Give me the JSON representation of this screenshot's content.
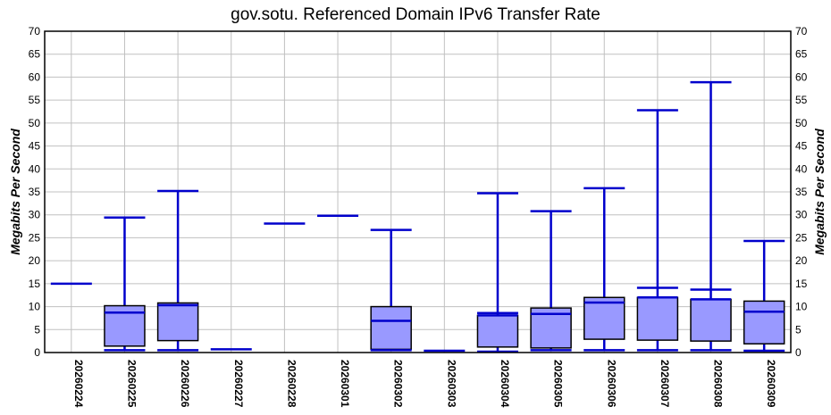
{
  "chart_data": {
    "type": "box",
    "title": "gov.sotu. Referenced Domain IPv6 Transfer Rate",
    "ylabel": "Megabits Per Second",
    "ylabel_right": "Megabits Per Second",
    "xlabel": "",
    "ylim": [
      0,
      70
    ],
    "yticks": [
      0,
      5,
      10,
      15,
      20,
      25,
      30,
      35,
      40,
      45,
      50,
      55,
      60,
      65,
      70
    ],
    "grid": true,
    "colors": {
      "box_fill": "#9999ff",
      "whisker": "#0000cc",
      "box_stroke": "#000000",
      "grid": "#c0c0c0"
    },
    "categories": [
      "20260224",
      "20260225",
      "20260226",
      "20260227",
      "20260228",
      "20260301",
      "20260302",
      "20260303",
      "20260304",
      "20260305",
      "20260306",
      "20260307",
      "20260308",
      "20260309"
    ],
    "series": [
      {
        "date": "20260224",
        "single": 15.0
      },
      {
        "date": "20260225",
        "min": 0.5,
        "q1": 1.4,
        "median": 8.7,
        "q3": 10.2,
        "max": 29.4
      },
      {
        "date": "20260226",
        "min": 0.5,
        "q1": 2.6,
        "median": 10.3,
        "q3": 10.8,
        "max": 35.2
      },
      {
        "date": "20260227",
        "single": 0.7
      },
      {
        "date": "20260228",
        "single": 28.1
      },
      {
        "date": "20260301",
        "single": 29.8
      },
      {
        "date": "20260302",
        "min": 0.5,
        "q1": 0.7,
        "median": 6.9,
        "q3": 10.0,
        "max": 26.7
      },
      {
        "date": "20260303",
        "single": 0.4
      },
      {
        "date": "20260304",
        "min": 0.2,
        "q1": 1.2,
        "median": 8.1,
        "q3": 8.1,
        "max": 34.7,
        "extra": 8.6
      },
      {
        "date": "20260305",
        "min": 0.5,
        "q1": 1.0,
        "median": 8.4,
        "q3": 9.7,
        "max": 30.8
      },
      {
        "date": "20260306",
        "min": 0.5,
        "q1": 2.9,
        "median": 10.9,
        "q3": 12.0,
        "max": 35.8
      },
      {
        "date": "20260307",
        "min": 0.5,
        "q1": 2.7,
        "median": 12.0,
        "q3": 12.0,
        "max": 52.8,
        "extra": 14.1
      },
      {
        "date": "20260308",
        "min": 0.5,
        "q1": 2.5,
        "median": 11.6,
        "q3": 11.6,
        "max": 58.9,
        "extra": 13.7
      },
      {
        "date": "20260309",
        "min": 0.4,
        "q1": 1.9,
        "median": 8.9,
        "q3": 11.2,
        "max": 24.3
      }
    ]
  }
}
